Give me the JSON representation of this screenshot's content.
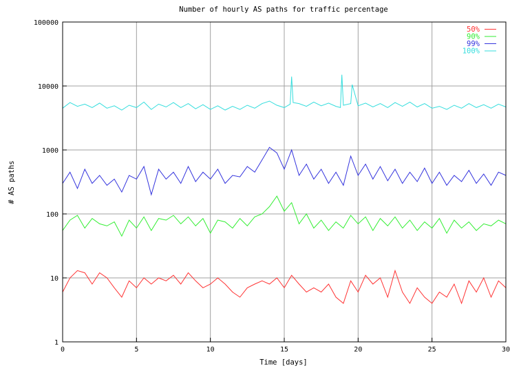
{
  "chart_data": {
    "type": "line",
    "title": "Number of hourly AS paths for traffic percentage",
    "xlabel": "Time [days]",
    "ylabel": "# AS paths",
    "xlim": [
      0,
      30
    ],
    "ylim": [
      1,
      100000
    ],
    "yscale": "log",
    "grid": true,
    "legend_position": "top-right",
    "x_ticks": [
      0,
      5,
      10,
      15,
      20,
      25,
      30
    ],
    "x_tick_labels": [
      "0",
      "5",
      "10",
      "15",
      "20",
      "25",
      "30"
    ],
    "y_ticks": [
      1,
      10,
      100,
      1000,
      10000,
      100000
    ],
    "y_tick_labels": [
      "1",
      "10",
      "100",
      "1000",
      "10000",
      "100000"
    ],
    "series": [
      {
        "name": "50%",
        "color": "#ff3333",
        "x": [
          0,
          0.5,
          1,
          1.5,
          2,
          2.5,
          3,
          3.5,
          4,
          4.5,
          5,
          5.5,
          6,
          6.5,
          7,
          7.5,
          8,
          8.5,
          9,
          9.5,
          10,
          10.5,
          11,
          11.5,
          12,
          12.5,
          13,
          13.5,
          14,
          14.5,
          15,
          15.5,
          16,
          16.5,
          17,
          17.5,
          18,
          18.5,
          19,
          19.5,
          20,
          20.5,
          21,
          21.5,
          22,
          22.5,
          23,
          23.5,
          24,
          24.5,
          25,
          25.5,
          26,
          26.5,
          27,
          27.5,
          28,
          28.5,
          29,
          29.5,
          30
        ],
        "values": [
          6,
          10,
          13,
          12,
          8,
          12,
          10,
          7,
          5,
          9,
          7,
          10,
          8,
          10,
          9,
          11,
          8,
          12,
          9,
          7,
          8,
          10,
          8,
          6,
          5,
          7,
          8,
          9,
          8,
          10,
          7,
          11,
          8,
          6,
          7,
          6,
          8,
          5,
          4,
          9,
          6,
          11,
          8,
          10,
          5,
          13,
          6,
          4,
          7,
          5,
          4,
          6,
          5,
          8,
          4,
          9,
          6,
          10,
          5,
          9,
          7
        ]
      },
      {
        "name": "90%",
        "color": "#33ee33",
        "x": [
          0,
          0.5,
          1,
          1.5,
          2,
          2.5,
          3,
          3.5,
          4,
          4.5,
          5,
          5.5,
          6,
          6.5,
          7,
          7.5,
          8,
          8.5,
          9,
          9.5,
          10,
          10.5,
          11,
          11.5,
          12,
          12.5,
          13,
          13.5,
          14,
          14.5,
          15,
          15.5,
          16,
          16.5,
          17,
          17.5,
          18,
          18.5,
          19,
          19.5,
          20,
          20.5,
          21,
          21.5,
          22,
          22.5,
          23,
          23.5,
          24,
          24.5,
          25,
          25.5,
          26,
          26.5,
          27,
          27.5,
          28,
          28.5,
          29,
          29.5,
          30
        ],
        "values": [
          55,
          80,
          95,
          60,
          85,
          70,
          65,
          75,
          45,
          80,
          60,
          90,
          55,
          85,
          80,
          95,
          70,
          90,
          65,
          85,
          50,
          80,
          75,
          60,
          85,
          65,
          90,
          100,
          130,
          190,
          110,
          150,
          70,
          100,
          60,
          80,
          55,
          75,
          60,
          95,
          70,
          90,
          55,
          85,
          65,
          90,
          60,
          80,
          55,
          75,
          60,
          85,
          50,
          80,
          60,
          75,
          55,
          70,
          65,
          80,
          70
        ]
      },
      {
        "name": "99%",
        "color": "#3333dd",
        "x": [
          0,
          0.5,
          1,
          1.5,
          2,
          2.5,
          3,
          3.5,
          4,
          4.5,
          5,
          5.5,
          6,
          6.5,
          7,
          7.5,
          8,
          8.5,
          9,
          9.5,
          10,
          10.5,
          11,
          11.5,
          12,
          12.5,
          13,
          13.5,
          14,
          14.5,
          15,
          15.5,
          16,
          16.5,
          17,
          17.5,
          18,
          18.5,
          19,
          19.5,
          20,
          20.5,
          21,
          21.5,
          22,
          22.5,
          23,
          23.5,
          24,
          24.5,
          25,
          25.5,
          26,
          26.5,
          27,
          27.5,
          28,
          28.5,
          29,
          29.5,
          30
        ],
        "values": [
          300,
          450,
          250,
          500,
          300,
          400,
          280,
          350,
          220,
          400,
          350,
          550,
          200,
          500,
          350,
          450,
          300,
          550,
          320,
          450,
          350,
          500,
          300,
          400,
          380,
          550,
          450,
          700,
          1100,
          900,
          500,
          1000,
          400,
          600,
          350,
          500,
          300,
          450,
          280,
          800,
          400,
          600,
          350,
          550,
          330,
          500,
          300,
          450,
          320,
          520,
          300,
          450,
          280,
          400,
          320,
          480,
          300,
          420,
          280,
          450,
          400
        ]
      },
      {
        "name": "100%",
        "color": "#33dddd",
        "x": [
          0,
          0.5,
          1,
          1.5,
          2,
          2.5,
          3,
          3.5,
          4,
          4.5,
          5,
          5.5,
          6,
          6.5,
          7,
          7.5,
          8,
          8.5,
          9,
          9.5,
          10,
          10.5,
          11,
          11.5,
          12,
          12.5,
          13,
          13.5,
          14,
          14.5,
          15,
          15.4,
          15.5,
          15.6,
          16,
          16.5,
          17,
          17.5,
          18,
          18.5,
          18.8,
          18.9,
          19,
          19.5,
          19.6,
          20,
          20.5,
          21,
          21.5,
          22,
          22.5,
          23,
          23.5,
          24,
          24.5,
          25,
          25.5,
          26,
          26.5,
          27,
          27.5,
          28,
          28.5,
          29,
          29.5,
          30
        ],
        "values": [
          4500,
          5500,
          4800,
          5200,
          4600,
          5400,
          4500,
          4900,
          4200,
          5000,
          4600,
          5600,
          4300,
          5200,
          4700,
          5500,
          4600,
          5300,
          4400,
          5100,
          4300,
          4900,
          4200,
          4800,
          4300,
          5000,
          4500,
          5300,
          5800,
          5000,
          4600,
          5200,
          14000,
          5500,
          5300,
          4800,
          5600,
          4900,
          5400,
          4800,
          4600,
          15000,
          5000,
          5300,
          10500,
          4900,
          5400,
          4700,
          5300,
          4600,
          5500,
          4800,
          5600,
          4700,
          5300,
          4500,
          4800,
          4300,
          5000,
          4500,
          5300,
          4600,
          5100,
          4500,
          5200,
          4700
        ]
      }
    ]
  }
}
